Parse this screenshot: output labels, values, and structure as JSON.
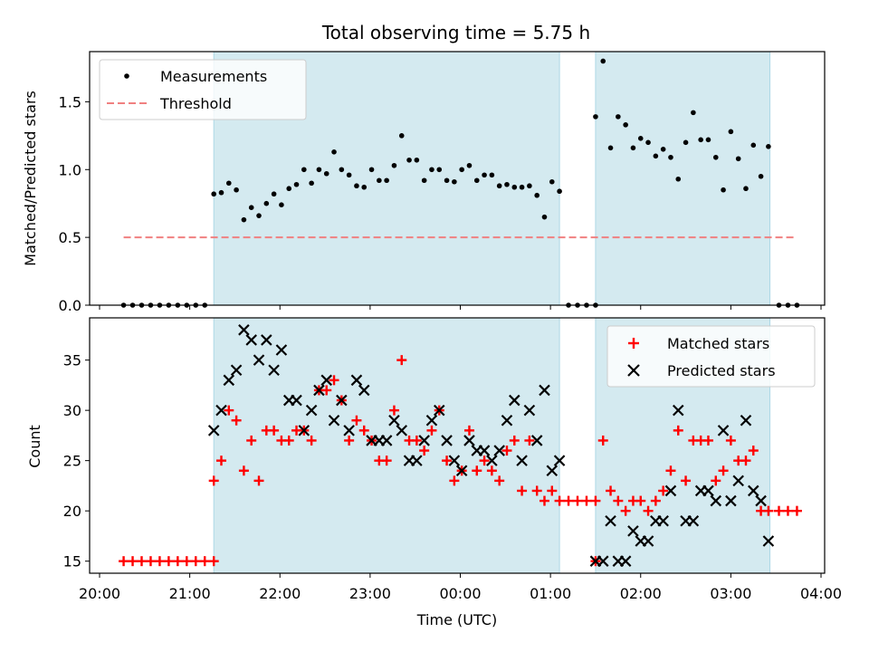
{
  "chart_data": [
    {
      "type": "scatter",
      "title": "Total observing time = 5.75 h",
      "ylabel": "Matched/Predicted stars",
      "xlabel": "",
      "xlim": [
        "20:00",
        "04:00"
      ],
      "ylim": [
        0,
        1.87
      ],
      "yticks": [
        "0.0",
        "0.5",
        "1.0",
        "1.5"
      ],
      "grid": false,
      "legend_position": "top-left",
      "observing_windows": [
        [
          "21:16",
          "01:06"
        ],
        [
          "01:30",
          "03:26"
        ]
      ],
      "series": [
        {
          "name": "Measurements",
          "color": "#000000",
          "marker": "dot",
          "points": [
            [
              "20:16",
              0
            ],
            [
              "20:22",
              0
            ],
            [
              "20:28",
              0
            ],
            [
              "20:34",
              0
            ],
            [
              "20:40",
              0
            ],
            [
              "20:46",
              0
            ],
            [
              "20:52",
              0
            ],
            [
              "20:58",
              0
            ],
            [
              "21:04",
              0
            ],
            [
              "21:10",
              0
            ],
            [
              "21:16",
              0.82
            ],
            [
              "21:21",
              0.83
            ],
            [
              "21:26",
              0.9
            ],
            [
              "21:31",
              0.85
            ],
            [
              "21:36",
              0.63
            ],
            [
              "21:41",
              0.72
            ],
            [
              "21:46",
              0.66
            ],
            [
              "21:51",
              0.75
            ],
            [
              "21:56",
              0.82
            ],
            [
              "22:01",
              0.74
            ],
            [
              "22:06",
              0.86
            ],
            [
              "22:11",
              0.89
            ],
            [
              "22:16",
              1.0
            ],
            [
              "22:21",
              0.9
            ],
            [
              "22:26",
              1.0
            ],
            [
              "22:31",
              0.97
            ],
            [
              "22:36",
              1.13
            ],
            [
              "22:41",
              1.0
            ],
            [
              "22:46",
              0.96
            ],
            [
              "22:51",
              0.88
            ],
            [
              "22:56",
              0.87
            ],
            [
              "23:01",
              1.0
            ],
            [
              "23:06",
              0.92
            ],
            [
              "23:11",
              0.92
            ],
            [
              "23:16",
              1.03
            ],
            [
              "23:21",
              1.25
            ],
            [
              "23:26",
              1.07
            ],
            [
              "23:31",
              1.07
            ],
            [
              "23:36",
              0.92
            ],
            [
              "23:41",
              1.0
            ],
            [
              "23:46",
              1.0
            ],
            [
              "23:51",
              0.92
            ],
            [
              "23:56",
              0.91
            ],
            [
              "00:01",
              1.0
            ],
            [
              "00:06",
              1.03
            ],
            [
              "00:11",
              0.92
            ],
            [
              "00:16",
              0.96
            ],
            [
              "00:21",
              0.96
            ],
            [
              "00:26",
              0.88
            ],
            [
              "00:31",
              0.89
            ],
            [
              "00:36",
              0.87
            ],
            [
              "00:41",
              0.87
            ],
            [
              "00:46",
              0.88
            ],
            [
              "00:51",
              0.81
            ],
            [
              "00:56",
              0.65
            ],
            [
              "01:01",
              0.91
            ],
            [
              "01:06",
              0.84
            ],
            [
              "01:12",
              0
            ],
            [
              "01:18",
              0
            ],
            [
              "01:24",
              0
            ],
            [
              "01:30",
              0
            ],
            [
              "01:30",
              1.39
            ],
            [
              "01:35",
              1.8
            ],
            [
              "01:40",
              1.16
            ],
            [
              "01:45",
              1.39
            ],
            [
              "01:50",
              1.33
            ],
            [
              "01:55",
              1.16
            ],
            [
              "02:00",
              1.23
            ],
            [
              "02:05",
              1.2
            ],
            [
              "02:10",
              1.1
            ],
            [
              "02:15",
              1.15
            ],
            [
              "02:20",
              1.09
            ],
            [
              "02:25",
              0.93
            ],
            [
              "02:30",
              1.2
            ],
            [
              "02:35",
              1.42
            ],
            [
              "02:40",
              1.22
            ],
            [
              "02:45",
              1.22
            ],
            [
              "02:50",
              1.09
            ],
            [
              "02:55",
              0.85
            ],
            [
              "03:00",
              1.28
            ],
            [
              "03:05",
              1.08
            ],
            [
              "03:10",
              0.86
            ],
            [
              "03:15",
              1.18
            ],
            [
              "03:20",
              0.95
            ],
            [
              "03:25",
              1.17
            ],
            [
              "03:32",
              0
            ],
            [
              "03:38",
              0
            ],
            [
              "03:44",
              0
            ]
          ]
        },
        {
          "name": "Threshold",
          "color": "#f08080",
          "line_style": "dashed",
          "points": [
            [
              "20:16",
              0.5
            ],
            [
              "03:44",
              0.5
            ]
          ]
        }
      ]
    },
    {
      "type": "scatter",
      "title": "",
      "ylabel": "Count",
      "xlabel": "Time (UTC)",
      "xlim": [
        "20:00",
        "04:00"
      ],
      "ylim": [
        13.8,
        39.2
      ],
      "yticks": [
        "15",
        "20",
        "25",
        "30",
        "35"
      ],
      "xticks": [
        "20:00",
        "21:00",
        "22:00",
        "23:00",
        "00:00",
        "01:00",
        "02:00",
        "03:00",
        "04:00"
      ],
      "grid": false,
      "legend_position": "top-right",
      "observing_windows": [
        [
          "21:16",
          "01:06"
        ],
        [
          "01:30",
          "03:26"
        ]
      ],
      "series": [
        {
          "name": "Matched stars",
          "color": "#ff0000",
          "marker": "plus",
          "points": [
            [
              "20:16",
              15
            ],
            [
              "20:22",
              15
            ],
            [
              "20:28",
              15
            ],
            [
              "20:34",
              15
            ],
            [
              "20:40",
              15
            ],
            [
              "20:46",
              15
            ],
            [
              "20:52",
              15
            ],
            [
              "20:58",
              15
            ],
            [
              "21:04",
              15
            ],
            [
              "21:10",
              15
            ],
            [
              "21:16",
              15
            ],
            [
              "21:16",
              23
            ],
            [
              "21:21",
              25
            ],
            [
              "21:26",
              30
            ],
            [
              "21:31",
              29
            ],
            [
              "21:36",
              24
            ],
            [
              "21:41",
              27
            ],
            [
              "21:46",
              23
            ],
            [
              "21:51",
              28
            ],
            [
              "21:56",
              28
            ],
            [
              "22:01",
              27
            ],
            [
              "22:06",
              27
            ],
            [
              "22:11",
              28
            ],
            [
              "22:16",
              28
            ],
            [
              "22:21",
              27
            ],
            [
              "22:26",
              32
            ],
            [
              "22:31",
              32
            ],
            [
              "22:36",
              33
            ],
            [
              "22:41",
              31
            ],
            [
              "22:46",
              27
            ],
            [
              "22:51",
              29
            ],
            [
              "22:56",
              28
            ],
            [
              "23:01",
              27
            ],
            [
              "23:06",
              25
            ],
            [
              "23:11",
              25
            ],
            [
              "23:16",
              30
            ],
            [
              "23:21",
              35
            ],
            [
              "23:26",
              27
            ],
            [
              "23:31",
              27
            ],
            [
              "23:36",
              26
            ],
            [
              "23:41",
              28
            ],
            [
              "23:46",
              30
            ],
            [
              "23:51",
              25
            ],
            [
              "23:56",
              23
            ],
            [
              "00:01",
              24
            ],
            [
              "00:06",
              28
            ],
            [
              "00:11",
              24
            ],
            [
              "00:16",
              25
            ],
            [
              "00:21",
              24
            ],
            [
              "00:26",
              23
            ],
            [
              "00:31",
              26
            ],
            [
              "00:36",
              27
            ],
            [
              "00:41",
              22
            ],
            [
              "00:46",
              27
            ],
            [
              "00:51",
              22
            ],
            [
              "00:56",
              21
            ],
            [
              "01:01",
              22
            ],
            [
              "01:06",
              21
            ],
            [
              "01:12",
              21
            ],
            [
              "01:18",
              21
            ],
            [
              "01:24",
              21
            ],
            [
              "01:30",
              21
            ],
            [
              "01:30",
              15
            ],
            [
              "01:35",
              27
            ],
            [
              "01:40",
              22
            ],
            [
              "01:45",
              21
            ],
            [
              "01:50",
              20
            ],
            [
              "01:55",
              21
            ],
            [
              "02:00",
              21
            ],
            [
              "02:05",
              20
            ],
            [
              "02:10",
              21
            ],
            [
              "02:15",
              22
            ],
            [
              "02:20",
              24
            ],
            [
              "02:25",
              28
            ],
            [
              "02:30",
              23
            ],
            [
              "02:35",
              27
            ],
            [
              "02:40",
              27
            ],
            [
              "02:45",
              27
            ],
            [
              "02:50",
              23
            ],
            [
              "02:55",
              24
            ],
            [
              "03:00",
              27
            ],
            [
              "03:05",
              25
            ],
            [
              "03:10",
              25
            ],
            [
              "03:15",
              26
            ],
            [
              "03:20",
              20
            ],
            [
              "03:25",
              20
            ],
            [
              "03:32",
              20
            ],
            [
              "03:38",
              20
            ],
            [
              "03:44",
              20
            ]
          ]
        },
        {
          "name": "Predicted stars",
          "color": "#000000",
          "marker": "x",
          "points": [
            [
              "21:16",
              28
            ],
            [
              "21:21",
              30
            ],
            [
              "21:26",
              33
            ],
            [
              "21:31",
              34
            ],
            [
              "21:36",
              38
            ],
            [
              "21:41",
              37
            ],
            [
              "21:46",
              35
            ],
            [
              "21:51",
              37
            ],
            [
              "21:56",
              34
            ],
            [
              "22:01",
              36
            ],
            [
              "22:06",
              31
            ],
            [
              "22:11",
              31
            ],
            [
              "22:16",
              28
            ],
            [
              "22:21",
              30
            ],
            [
              "22:26",
              32
            ],
            [
              "22:31",
              33
            ],
            [
              "22:36",
              29
            ],
            [
              "22:41",
              31
            ],
            [
              "22:46",
              28
            ],
            [
              "22:51",
              33
            ],
            [
              "22:56",
              32
            ],
            [
              "23:01",
              27
            ],
            [
              "23:06",
              27
            ],
            [
              "23:11",
              27
            ],
            [
              "23:16",
              29
            ],
            [
              "23:21",
              28
            ],
            [
              "23:26",
              25
            ],
            [
              "23:31",
              25
            ],
            [
              "23:36",
              27
            ],
            [
              "23:41",
              29
            ],
            [
              "23:46",
              30
            ],
            [
              "23:51",
              27
            ],
            [
              "23:56",
              25
            ],
            [
              "00:01",
              24
            ],
            [
              "00:06",
              27
            ],
            [
              "00:11",
              26
            ],
            [
              "00:16",
              26
            ],
            [
              "00:21",
              25
            ],
            [
              "00:26",
              26
            ],
            [
              "00:31",
              29
            ],
            [
              "00:36",
              31
            ],
            [
              "00:41",
              25
            ],
            [
              "00:46",
              30
            ],
            [
              "00:51",
              27
            ],
            [
              "00:56",
              32
            ],
            [
              "01:01",
              24
            ],
            [
              "01:06",
              25
            ],
            [
              "01:30",
              15
            ],
            [
              "01:35",
              15
            ],
            [
              "01:40",
              19
            ],
            [
              "01:45",
              15
            ],
            [
              "01:50",
              15
            ],
            [
              "01:55",
              18
            ],
            [
              "02:00",
              17
            ],
            [
              "02:05",
              17
            ],
            [
              "02:10",
              19
            ],
            [
              "02:15",
              19
            ],
            [
              "02:20",
              22
            ],
            [
              "02:25",
              30
            ],
            [
              "02:30",
              19
            ],
            [
              "02:35",
              19
            ],
            [
              "02:40",
              22
            ],
            [
              "02:45",
              22
            ],
            [
              "02:50",
              21
            ],
            [
              "02:55",
              28
            ],
            [
              "03:00",
              21
            ],
            [
              "03:05",
              23
            ],
            [
              "03:10",
              29
            ],
            [
              "03:15",
              22
            ],
            [
              "03:20",
              21
            ],
            [
              "03:25",
              17
            ]
          ]
        }
      ]
    }
  ],
  "colors": {
    "window_fill": "#d4eaf0",
    "window_edge": "#add8e6"
  }
}
